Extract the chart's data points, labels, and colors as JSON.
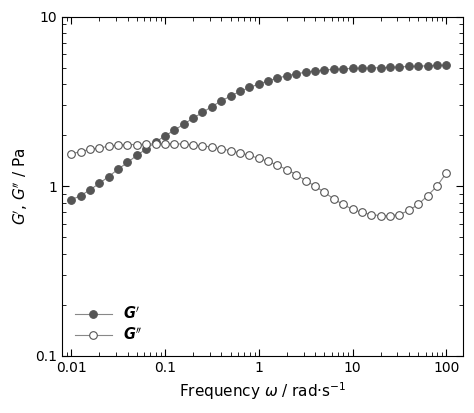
{
  "title": "",
  "xlabel_text": "Frequency ",
  "xlabel_omega": "ω",
  "xlabel_suffix": " / rad·s⁻¹",
  "ylabel": "G′, G″ / Pa",
  "xlim": [
    0.008,
    150
  ],
  "ylim": [
    0.1,
    10
  ],
  "G_prime_x": [
    0.01,
    0.0126,
    0.0158,
    0.02,
    0.0251,
    0.0316,
    0.0398,
    0.0501,
    0.0631,
    0.0794,
    0.1,
    0.126,
    0.158,
    0.2,
    0.251,
    0.316,
    0.398,
    0.501,
    0.631,
    0.794,
    1.0,
    1.26,
    1.58,
    2.0,
    2.51,
    3.16,
    3.98,
    5.01,
    6.31,
    7.94,
    10.0,
    12.6,
    15.8,
    20.0,
    25.1,
    31.6,
    39.8,
    50.1,
    63.1,
    79.4,
    100.0
  ],
  "G_prime_y": [
    0.83,
    0.88,
    0.95,
    1.04,
    1.14,
    1.26,
    1.38,
    1.52,
    1.66,
    1.82,
    1.98,
    2.14,
    2.32,
    2.52,
    2.72,
    2.95,
    3.18,
    3.4,
    3.62,
    3.82,
    4.0,
    4.18,
    4.34,
    4.48,
    4.6,
    4.7,
    4.78,
    4.84,
    4.89,
    4.92,
    4.95,
    4.97,
    4.98,
    5.0,
    5.02,
    5.05,
    5.08,
    5.1,
    5.13,
    5.15,
    5.18
  ],
  "G_double_prime_x": [
    0.01,
    0.0126,
    0.0158,
    0.02,
    0.0251,
    0.0316,
    0.0398,
    0.0501,
    0.0631,
    0.0794,
    0.1,
    0.126,
    0.158,
    0.2,
    0.251,
    0.316,
    0.398,
    0.501,
    0.631,
    0.794,
    1.0,
    1.26,
    1.58,
    2.0,
    2.51,
    3.16,
    3.98,
    5.01,
    6.31,
    7.94,
    10.0,
    12.6,
    15.8,
    20.0,
    25.1,
    31.6,
    39.8,
    50.1,
    63.1,
    79.4,
    100.0
  ],
  "G_double_prime_y": [
    1.55,
    1.6,
    1.65,
    1.68,
    1.72,
    1.75,
    1.76,
    1.76,
    1.77,
    1.78,
    1.78,
    1.78,
    1.77,
    1.75,
    1.73,
    1.7,
    1.66,
    1.62,
    1.57,
    1.52,
    1.46,
    1.4,
    1.33,
    1.25,
    1.17,
    1.08,
    1.0,
    0.92,
    0.84,
    0.78,
    0.73,
    0.7,
    0.68,
    0.67,
    0.67,
    0.68,
    0.72,
    0.78,
    0.88,
    1.0,
    1.2
  ],
  "line_color": "#888888",
  "G_prime_marker_color": "#555555",
  "G_double_prime_marker_color": "#ffffff",
  "marker_edge_color": "#555555",
  "marker_size": 5.5,
  "line_width": 0.8,
  "background_color": "#ffffff"
}
